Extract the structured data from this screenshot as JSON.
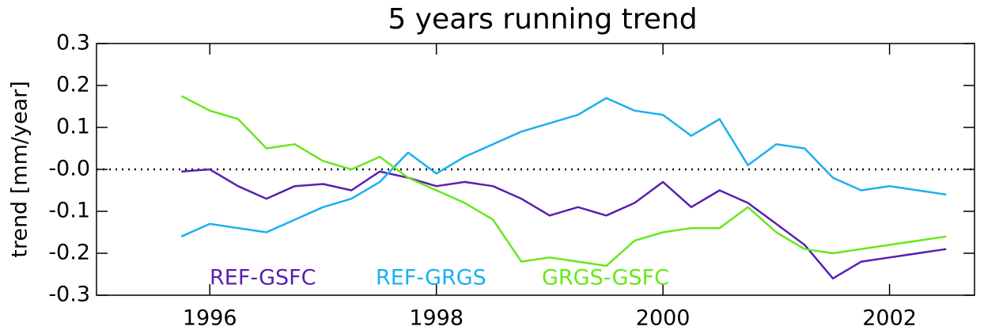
{
  "chart_data": {
    "type": "line",
    "title": "5 years running trend",
    "y_label": "trend [mm/year]",
    "x": [
      1995.75,
      1996.0,
      1996.25,
      1996.5,
      1996.75,
      1997.0,
      1997.25,
      1997.5,
      1997.75,
      1998.0,
      1998.25,
      1998.5,
      1998.75,
      1999.0,
      1999.25,
      1999.5,
      1999.75,
      2000.0,
      2000.25,
      2000.5,
      2000.75,
      2001.0,
      2001.25,
      2001.5,
      2001.75,
      2002.0,
      2002.25,
      2002.5
    ],
    "series": [
      {
        "name": "REF-GSFC",
        "color": "#5a1fb0",
        "values": [
          -0.005,
          0.0,
          -0.04,
          -0.07,
          -0.04,
          -0.035,
          -0.05,
          -0.005,
          -0.02,
          -0.04,
          -0.03,
          -0.04,
          -0.07,
          -0.11,
          -0.09,
          -0.11,
          -0.08,
          -0.03,
          -0.09,
          -0.05,
          -0.08,
          -0.13,
          -0.18,
          -0.26,
          -0.22,
          -0.21,
          -0.2,
          -0.19
        ]
      },
      {
        "name": "REF-GRGS",
        "color": "#1ab0f0",
        "values": [
          -0.16,
          -0.13,
          -0.14,
          -0.15,
          -0.12,
          -0.09,
          -0.07,
          -0.03,
          0.04,
          -0.01,
          0.03,
          0.06,
          0.09,
          0.11,
          0.13,
          0.17,
          0.14,
          0.13,
          0.08,
          0.12,
          0.01,
          0.06,
          0.05,
          -0.02,
          -0.05,
          -0.04,
          -0.05,
          -0.06
        ]
      },
      {
        "name": "GRGS-GSFC",
        "color": "#66e81a",
        "values": [
          0.175,
          0.14,
          0.12,
          0.05,
          0.06,
          0.02,
          0.0,
          0.03,
          -0.02,
          -0.05,
          -0.08,
          -0.12,
          -0.22,
          -0.21,
          -0.22,
          -0.23,
          -0.17,
          -0.15,
          -0.14,
          -0.14,
          -0.09,
          -0.15,
          -0.19,
          -0.2,
          -0.19,
          -0.18,
          -0.17,
          -0.16
        ]
      }
    ],
    "xlim": [
      1995,
      2002.75
    ],
    "xticks": [
      1996,
      1998,
      2000,
      2002
    ],
    "ylim": [
      -0.3,
      0.3
    ],
    "yticks": [
      -0.3,
      -0.2,
      -0.1,
      {
        "value": 0,
        "label": "-0.0"
      },
      0.1,
      0.2,
      0.3
    ],
    "reference_line": 0
  }
}
